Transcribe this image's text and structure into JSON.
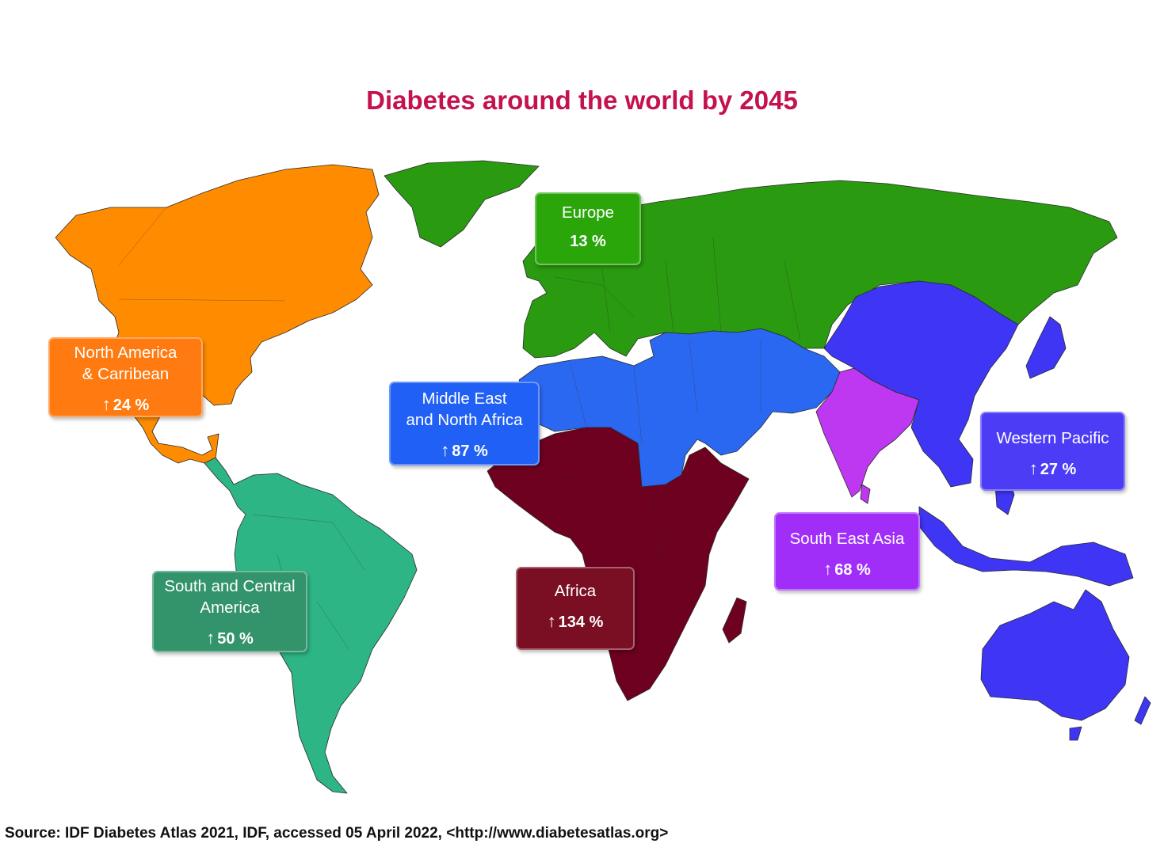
{
  "title": "Diabetes around the world by 2045",
  "source": "Source: IDF Diabetes Atlas 2021, IDF, accessed 05 April 2022, <http://www.diabetesatlas.org>",
  "arrow_glyph": "↑",
  "regions": [
    {
      "name_lines": [
        "Europe"
      ],
      "value": "13 %",
      "arrow": false,
      "color": "#2aa60a"
    },
    {
      "name_lines": [
        "North America",
        "& Carribean"
      ],
      "value": "24 %",
      "arrow": true,
      "color": "#ff7a10"
    },
    {
      "name_lines": [
        "Middle East",
        "and North Africa"
      ],
      "value": "87 %",
      "arrow": true,
      "color": "#2060f5"
    },
    {
      "name_lines": [
        "Western Pacific"
      ],
      "value": "27 %",
      "arrow": true,
      "color": "#4c3cf6"
    },
    {
      "name_lines": [
        "South East Asia"
      ],
      "value": "68 %",
      "arrow": true,
      "color": "#a02ef8"
    },
    {
      "name_lines": [
        "South and Central",
        "America"
      ],
      "value": "50 %",
      "arrow": true,
      "color": "#33936a"
    },
    {
      "name_lines": [
        "Africa"
      ],
      "value": "134 %",
      "arrow": true,
      "color": "#7a0e22"
    }
  ],
  "map_colors": {
    "north_america": "#ff8c00",
    "south_america": "#2db585",
    "europe": "#2a9a10",
    "mena": "#2b68f2",
    "africa": "#6e0020",
    "south_east_asia": "#bd38f0",
    "western_pacific": "#3e36f4"
  }
}
